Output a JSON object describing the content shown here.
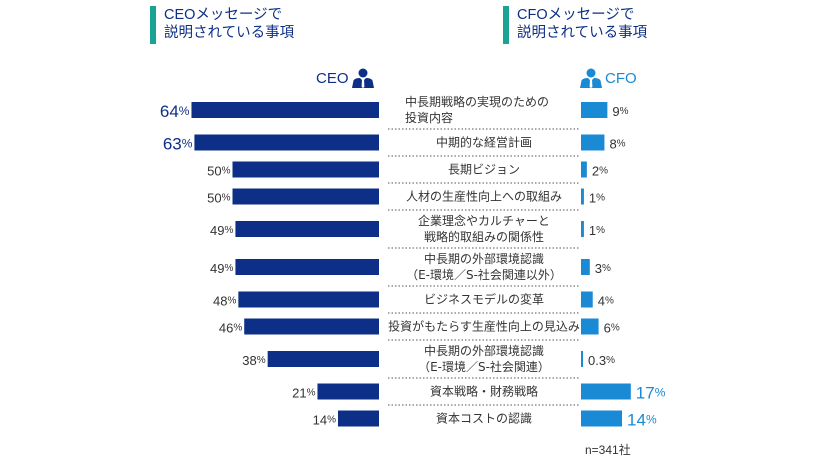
{
  "headings": {
    "ceo": [
      "CEOメッセージで",
      "説明されている事項"
    ],
    "cfo": [
      "CFOメッセージで",
      "説明されている事項"
    ]
  },
  "legend": {
    "ceo_label": "CEO",
    "cfo_label": "CFO",
    "ceo_icon": "person-icon",
    "cfo_icon": "person-icon"
  },
  "colors": {
    "ceo": "#0d2f87",
    "cfo": "#1a8ad4",
    "accent": "#1aa394",
    "label": "#333333",
    "divider": "#555555"
  },
  "footnote": "n=341社",
  "chart_data": {
    "type": "bar",
    "orientation": "horizontal-butterfly",
    "categories": [
      [
        "中長期戦略の実現のための",
        "投資内容"
      ],
      [
        "中期的な経営計画"
      ],
      [
        "長期ビジョン"
      ],
      [
        "人材の生産性向上への取組み"
      ],
      [
        "企業理念やカルチャーと",
        "戦略的取組みの関係性"
      ],
      [
        "中長期の外部環境認識",
        "（E-環境／S-社会関連以外）"
      ],
      [
        "ビジネスモデルの変革"
      ],
      [
        "投資がもたらす生産性向上の見込み"
      ],
      [
        "中長期の外部環境認識",
        "（E-環境／S-社会関連）"
      ],
      [
        "資本戦略・財務戦略"
      ],
      [
        "資本コストの認識"
      ]
    ],
    "series": [
      {
        "name": "CEO",
        "side": "left",
        "values": [
          64,
          63,
          50,
          50,
          49,
          49,
          48,
          46,
          38,
          21,
          14
        ],
        "labels": [
          "64",
          "63",
          "50",
          "50",
          "49",
          "49",
          "48",
          "46",
          "38",
          "21",
          "14"
        ],
        "highlight": [
          true,
          true,
          false,
          false,
          false,
          false,
          false,
          false,
          false,
          false,
          false
        ]
      },
      {
        "name": "CFO",
        "side": "right",
        "values": [
          9,
          8,
          2,
          1,
          1,
          3,
          4,
          6,
          0.3,
          17,
          14
        ],
        "labels": [
          "9",
          "8",
          "2",
          "1",
          "1",
          "3",
          "4",
          "6",
          "0.3",
          "17",
          "14"
        ],
        "highlight": [
          false,
          false,
          false,
          false,
          false,
          false,
          false,
          false,
          false,
          true,
          true
        ]
      }
    ],
    "unit": "%",
    "xlim": [
      0,
      70
    ],
    "grid": false,
    "legend": "top"
  }
}
